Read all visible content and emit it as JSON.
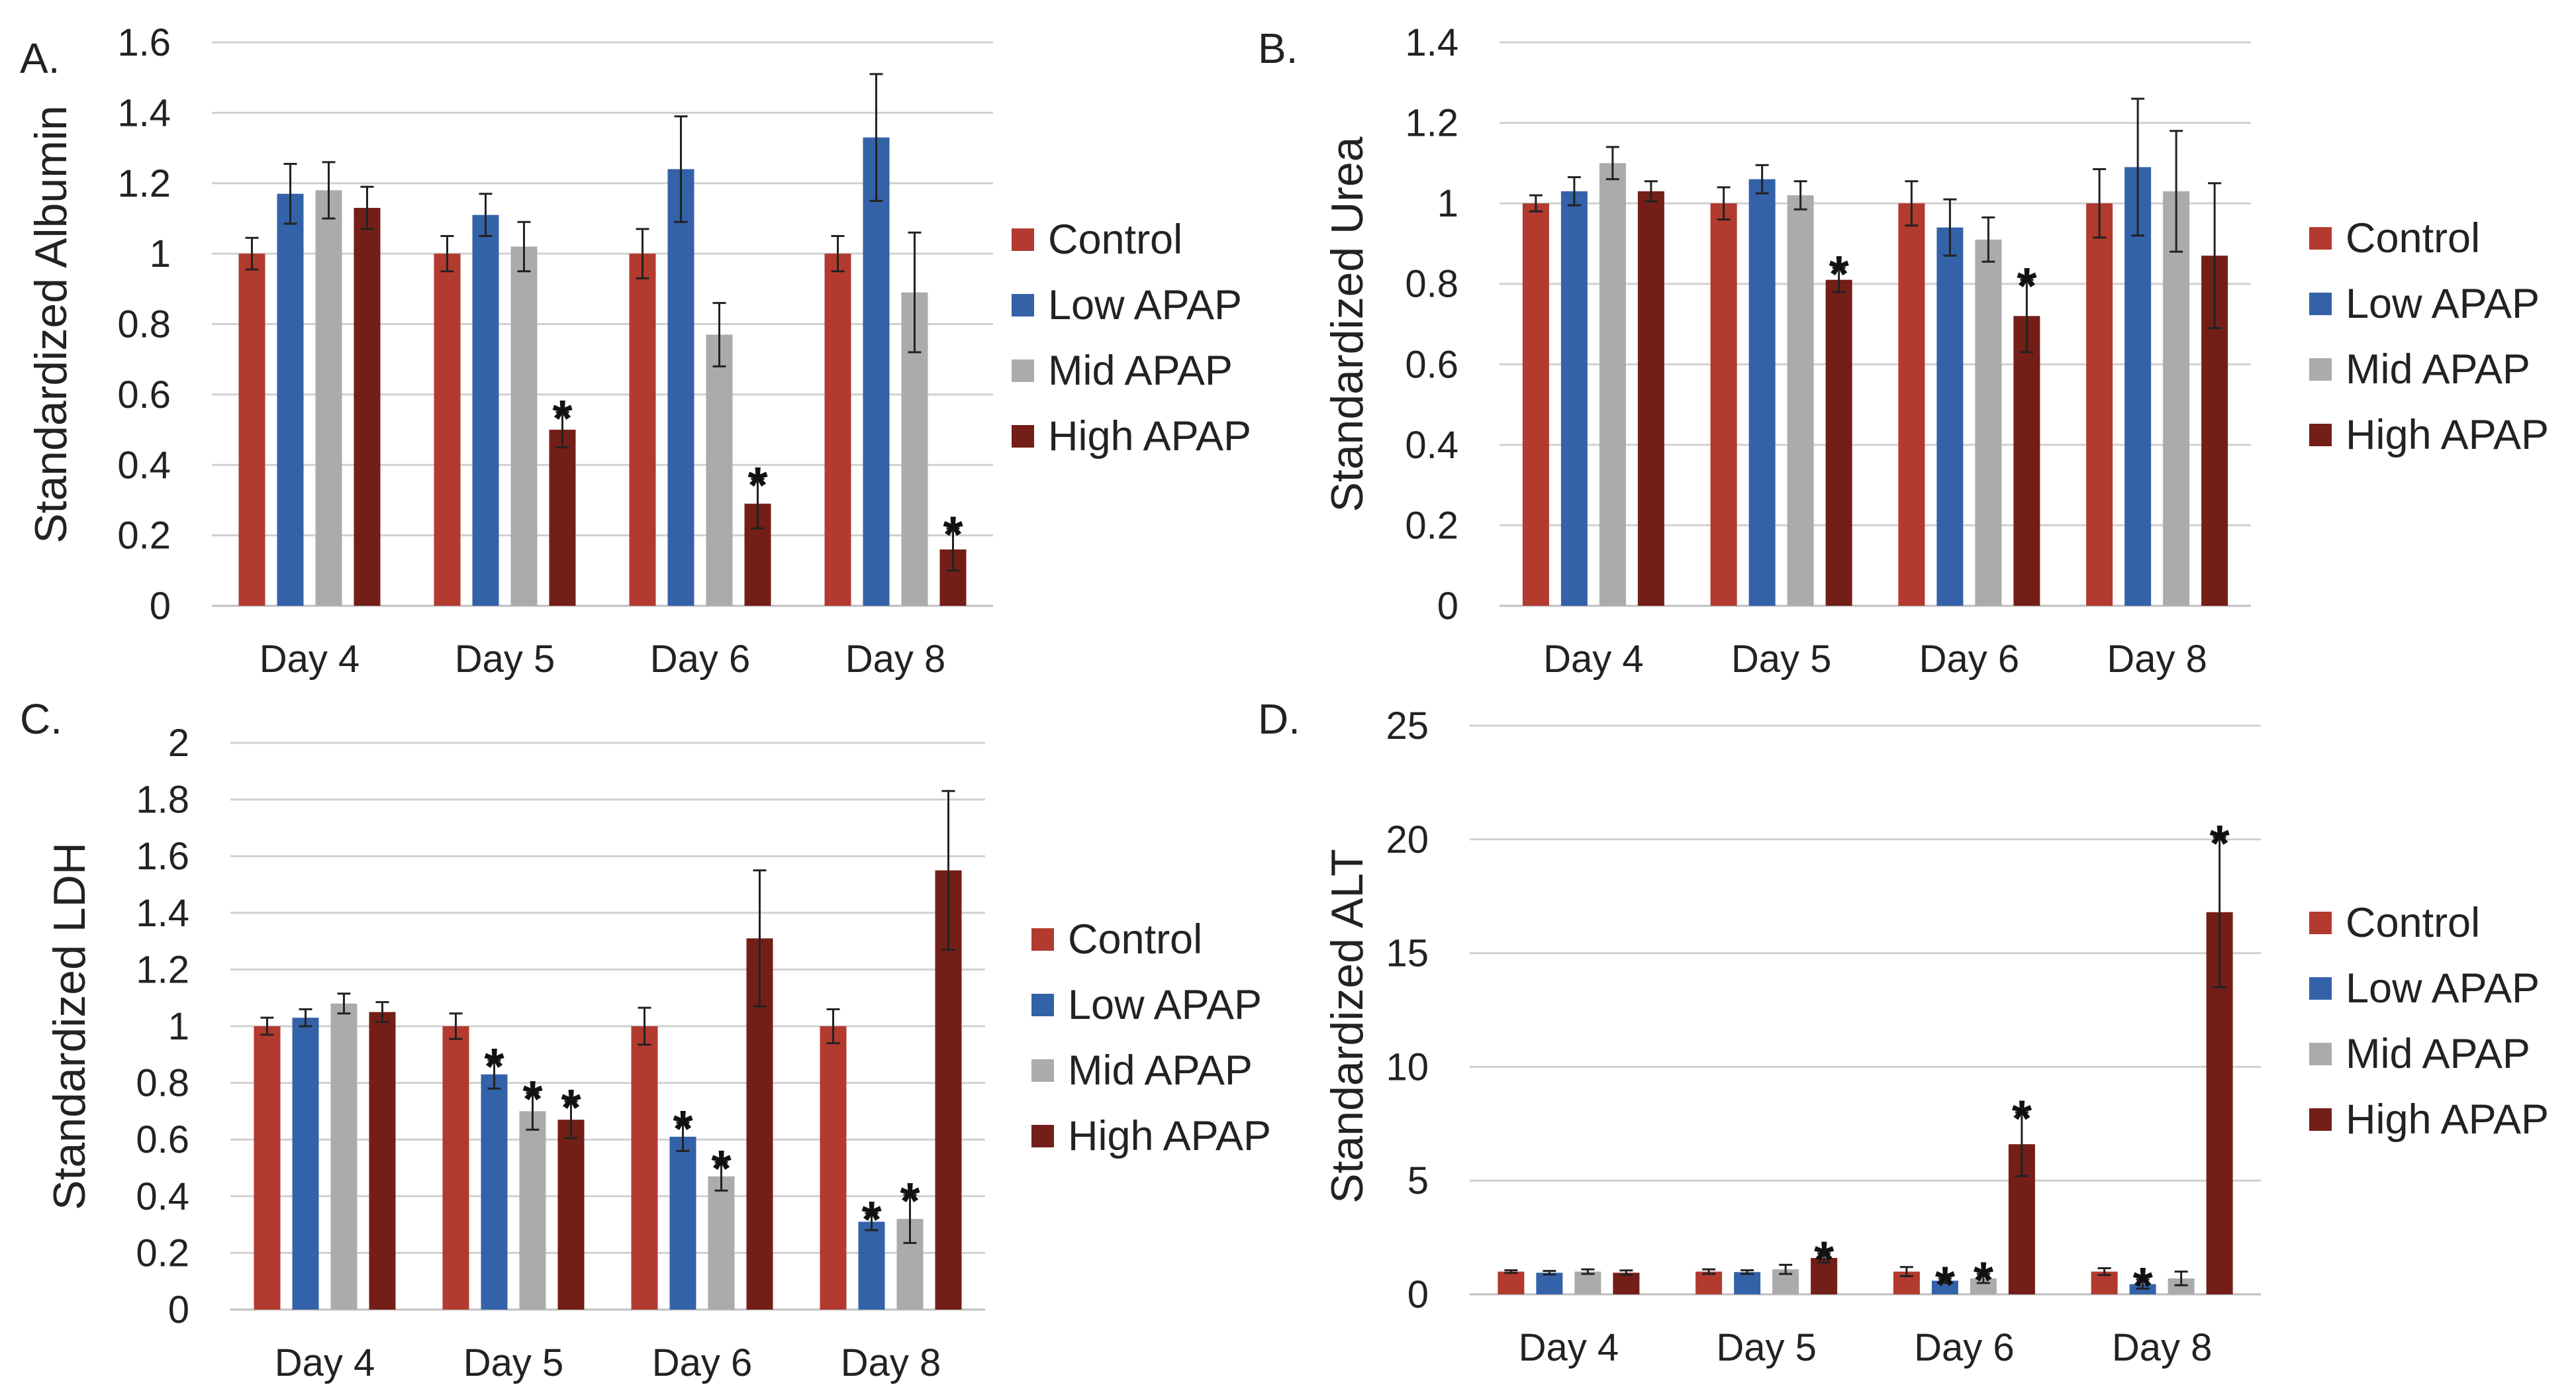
{
  "legend": {
    "entries": [
      "Control",
      "Low APAP",
      "Mid APAP",
      "High APAP"
    ]
  },
  "colors": {
    "Control": "#B23A2F",
    "Low APAP": "#3462A8",
    "Mid APAP": "#ABABAB",
    "High APAP": "#741E18",
    "gridline": "#D0D0D0",
    "axis": "#BFBFBF",
    "text": "#222222"
  },
  "chart_data": [
    {
      "panel_label": "A.",
      "type": "bar",
      "ylabel": "Standardized Albumin",
      "categories": [
        "Day 4",
        "Day 5",
        "Day 6",
        "Day 8"
      ],
      "ylim": [
        0,
        1.6
      ],
      "yticks": [
        0,
        0.2,
        0.4,
        0.6,
        0.8,
        1,
        1.2,
        1.4,
        1.6
      ],
      "ytick_labels": [
        "0",
        "0.2",
        "0.4",
        "0.6",
        "0.8",
        "1",
        "1.2",
        "1.4",
        "1.6"
      ],
      "grid": true,
      "legend_position": "right",
      "series": [
        {
          "name": "Control",
          "values": [
            1.0,
            1.0,
            1.0,
            1.0
          ],
          "errors": [
            0.045,
            0.05,
            0.07,
            0.05
          ]
        },
        {
          "name": "Low APAP",
          "values": [
            1.17,
            1.11,
            1.24,
            1.33
          ],
          "errors": [
            0.085,
            0.06,
            0.15,
            0.18
          ]
        },
        {
          "name": "Mid APAP",
          "values": [
            1.18,
            1.02,
            0.77,
            0.89
          ],
          "errors": [
            0.08,
            0.07,
            0.09,
            0.17
          ]
        },
        {
          "name": "High APAP",
          "values": [
            1.13,
            0.5,
            0.29,
            0.16
          ],
          "errors": [
            0.06,
            0.05,
            0.07,
            0.06
          ]
        }
      ],
      "significant": [
        [],
        [
          "High APAP"
        ],
        [
          "High APAP"
        ],
        [
          "High APAP"
        ]
      ],
      "significance_marker": "*"
    },
    {
      "panel_label": "B.",
      "type": "bar",
      "ylabel": "Standardized Urea",
      "categories": [
        "Day 4",
        "Day 5",
        "Day 6",
        "Day 8"
      ],
      "ylim": [
        0,
        1.4
      ],
      "yticks": [
        0,
        0.2,
        0.4,
        0.6,
        0.8,
        1,
        1.2,
        1.4
      ],
      "ytick_labels": [
        "0",
        "0.2",
        "0.4",
        "0.6",
        "0.8",
        "1",
        "1.2",
        "1.4"
      ],
      "grid": true,
      "legend_position": "right",
      "series": [
        {
          "name": "Control",
          "values": [
            1.0,
            1.0,
            1.0,
            1.0
          ],
          "errors": [
            0.02,
            0.04,
            0.055,
            0.085
          ]
        },
        {
          "name": "Low APAP",
          "values": [
            1.03,
            1.06,
            0.94,
            1.09
          ],
          "errors": [
            0.035,
            0.035,
            0.07,
            0.17
          ]
        },
        {
          "name": "Mid APAP",
          "values": [
            1.1,
            1.02,
            0.91,
            1.03
          ],
          "errors": [
            0.04,
            0.035,
            0.055,
            0.15
          ]
        },
        {
          "name": "High APAP",
          "values": [
            1.03,
            0.81,
            0.72,
            0.87
          ],
          "errors": [
            0.025,
            0.03,
            0.09,
            0.18
          ]
        }
      ],
      "significant": [
        [],
        [
          "High APAP"
        ],
        [
          "High APAP"
        ],
        []
      ],
      "significance_marker": "*"
    },
    {
      "panel_label": "C.",
      "type": "bar",
      "ylabel": "Standardized LDH",
      "categories": [
        "Day 4",
        "Day 5",
        "Day 6",
        "Day 8"
      ],
      "ylim": [
        0,
        2
      ],
      "yticks": [
        0,
        0.2,
        0.4,
        0.6,
        0.8,
        1,
        1.2,
        1.4,
        1.6,
        1.8,
        2
      ],
      "ytick_labels": [
        "0",
        "0.2",
        "0.4",
        "0.6",
        "0.8",
        "1",
        "1.2",
        "1.4",
        "1.6",
        "1.8",
        "2"
      ],
      "grid": true,
      "legend_position": "right",
      "series": [
        {
          "name": "Control",
          "values": [
            1.0,
            1.0,
            1.0,
            1.0
          ],
          "errors": [
            0.03,
            0.045,
            0.065,
            0.06
          ]
        },
        {
          "name": "Low APAP",
          "values": [
            1.03,
            0.83,
            0.61,
            0.31
          ],
          "errors": [
            0.03,
            0.05,
            0.05,
            0.03
          ]
        },
        {
          "name": "Mid APAP",
          "values": [
            1.08,
            0.7,
            0.47,
            0.32
          ],
          "errors": [
            0.035,
            0.065,
            0.05,
            0.085
          ]
        },
        {
          "name": "High APAP",
          "values": [
            1.05,
            0.67,
            1.31,
            1.55
          ],
          "errors": [
            0.035,
            0.065,
            0.24,
            0.28
          ]
        }
      ],
      "significant": [
        [],
        [
          "Low APAP",
          "Mid APAP",
          "High APAP"
        ],
        [
          "Low APAP",
          "Mid APAP"
        ],
        [
          "Low APAP",
          "Mid APAP"
        ]
      ],
      "significance_marker": "*"
    },
    {
      "panel_label": "D.",
      "type": "bar",
      "ylabel": "Standardized ALT",
      "categories": [
        "Day 4",
        "Day 5",
        "Day 6",
        "Day 8"
      ],
      "ylim": [
        0,
        25
      ],
      "yticks": [
        0,
        5,
        10,
        15,
        20,
        25
      ],
      "ytick_labels": [
        "0",
        "5",
        "10",
        "15",
        "20",
        "25"
      ],
      "grid": true,
      "legend_position": "right",
      "series": [
        {
          "name": "Control",
          "values": [
            1.0,
            1.0,
            1.0,
            1.0
          ],
          "errors": [
            0.06,
            0.1,
            0.2,
            0.15
          ]
        },
        {
          "name": "Low APAP",
          "values": [
            0.95,
            0.98,
            0.6,
            0.45
          ],
          "errors": [
            0.08,
            0.08,
            0.1,
            0.2
          ]
        },
        {
          "name": "Mid APAP",
          "values": [
            1.0,
            1.1,
            0.7,
            0.7
          ],
          "errors": [
            0.1,
            0.2,
            0.2,
            0.3
          ]
        },
        {
          "name": "High APAP",
          "values": [
            0.95,
            1.6,
            6.6,
            16.8
          ],
          "errors": [
            0.1,
            0.2,
            1.4,
            3.3
          ]
        }
      ],
      "significant": [
        [],
        [
          "High APAP"
        ],
        [
          "Low APAP",
          "Mid APAP",
          "High APAP"
        ],
        [
          "Low APAP",
          "High APAP"
        ]
      ],
      "significance_marker": "*"
    }
  ]
}
